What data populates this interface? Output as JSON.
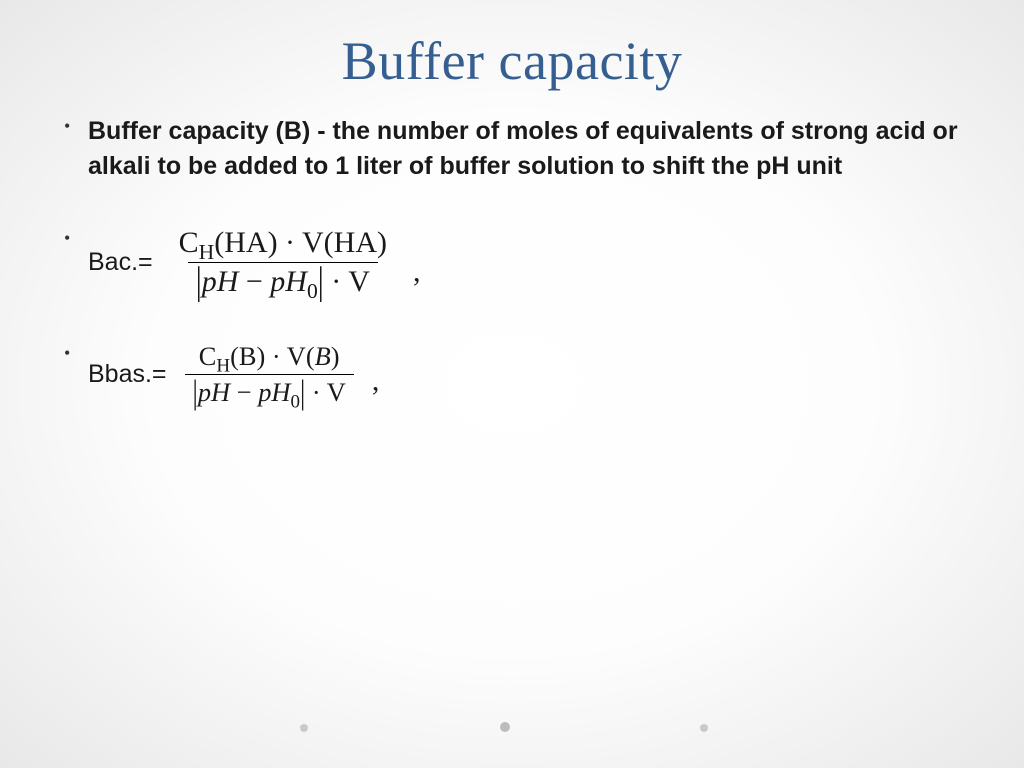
{
  "slide": {
    "title": "Buffer capacity",
    "title_color": "#365f91",
    "title_fontsize": 54,
    "definition": "Buffer capacity (B) - the number of moles of equivalents of strong acid or alkali to be added to 1 liter of buffer solution to shift the pH unit",
    "definition_fontsize": 25,
    "formula_label_fontsize": 25,
    "formula_fontsize": 30,
    "formulas": [
      {
        "label": "Bac.=",
        "numerator": {
          "parts": [
            {
              "text": "C",
              "type": "roman"
            },
            {
              "text": "H",
              "type": "sub"
            },
            {
              "text": "(HA)",
              "type": "roman"
            },
            {
              "text": "·",
              "type": "op"
            },
            {
              "text": "V(HA)",
              "type": "roman"
            }
          ]
        },
        "denominator": {
          "parts": [
            {
              "text": "|",
              "type": "abs"
            },
            {
              "text": "pH",
              "type": "italic"
            },
            {
              "text": " − ",
              "type": "roman"
            },
            {
              "text": "pH",
              "type": "italic"
            },
            {
              "text": "0",
              "type": "sub"
            },
            {
              "text": "|",
              "type": "abs"
            },
            {
              "text": "·",
              "type": "op"
            },
            {
              "text": "V",
              "type": "roman"
            }
          ]
        },
        "trailing": ","
      },
      {
        "label": "Bbas.=",
        "numerator": {
          "parts": [
            {
              "text": "C",
              "type": "roman"
            },
            {
              "text": "H",
              "type": "sub"
            },
            {
              "text": "(B)",
              "type": "roman"
            },
            {
              "text": "·",
              "type": "op"
            },
            {
              "text": "V(",
              "type": "roman"
            },
            {
              "text": "B",
              "type": "italic"
            },
            {
              "text": ")",
              "type": "roman"
            }
          ]
        },
        "denominator": {
          "parts": [
            {
              "text": "|",
              "type": "abs"
            },
            {
              "text": "pH",
              "type": "italic"
            },
            {
              "text": " − ",
              "type": "roman"
            },
            {
              "text": "pH",
              "type": "italic"
            },
            {
              "text": "0",
              "type": "sub"
            },
            {
              "text": "|",
              "type": "abs"
            },
            {
              "text": "·",
              "type": "op"
            },
            {
              "text": "V",
              "type": "roman"
            }
          ]
        },
        "trailing": ",",
        "smaller": true
      }
    ],
    "background_gradient": {
      "center": "#ffffff",
      "edge": "#e8e8e8"
    },
    "pager_dots": {
      "count": 3,
      "color": "#c9c9c9",
      "active_index": 1
    }
  }
}
